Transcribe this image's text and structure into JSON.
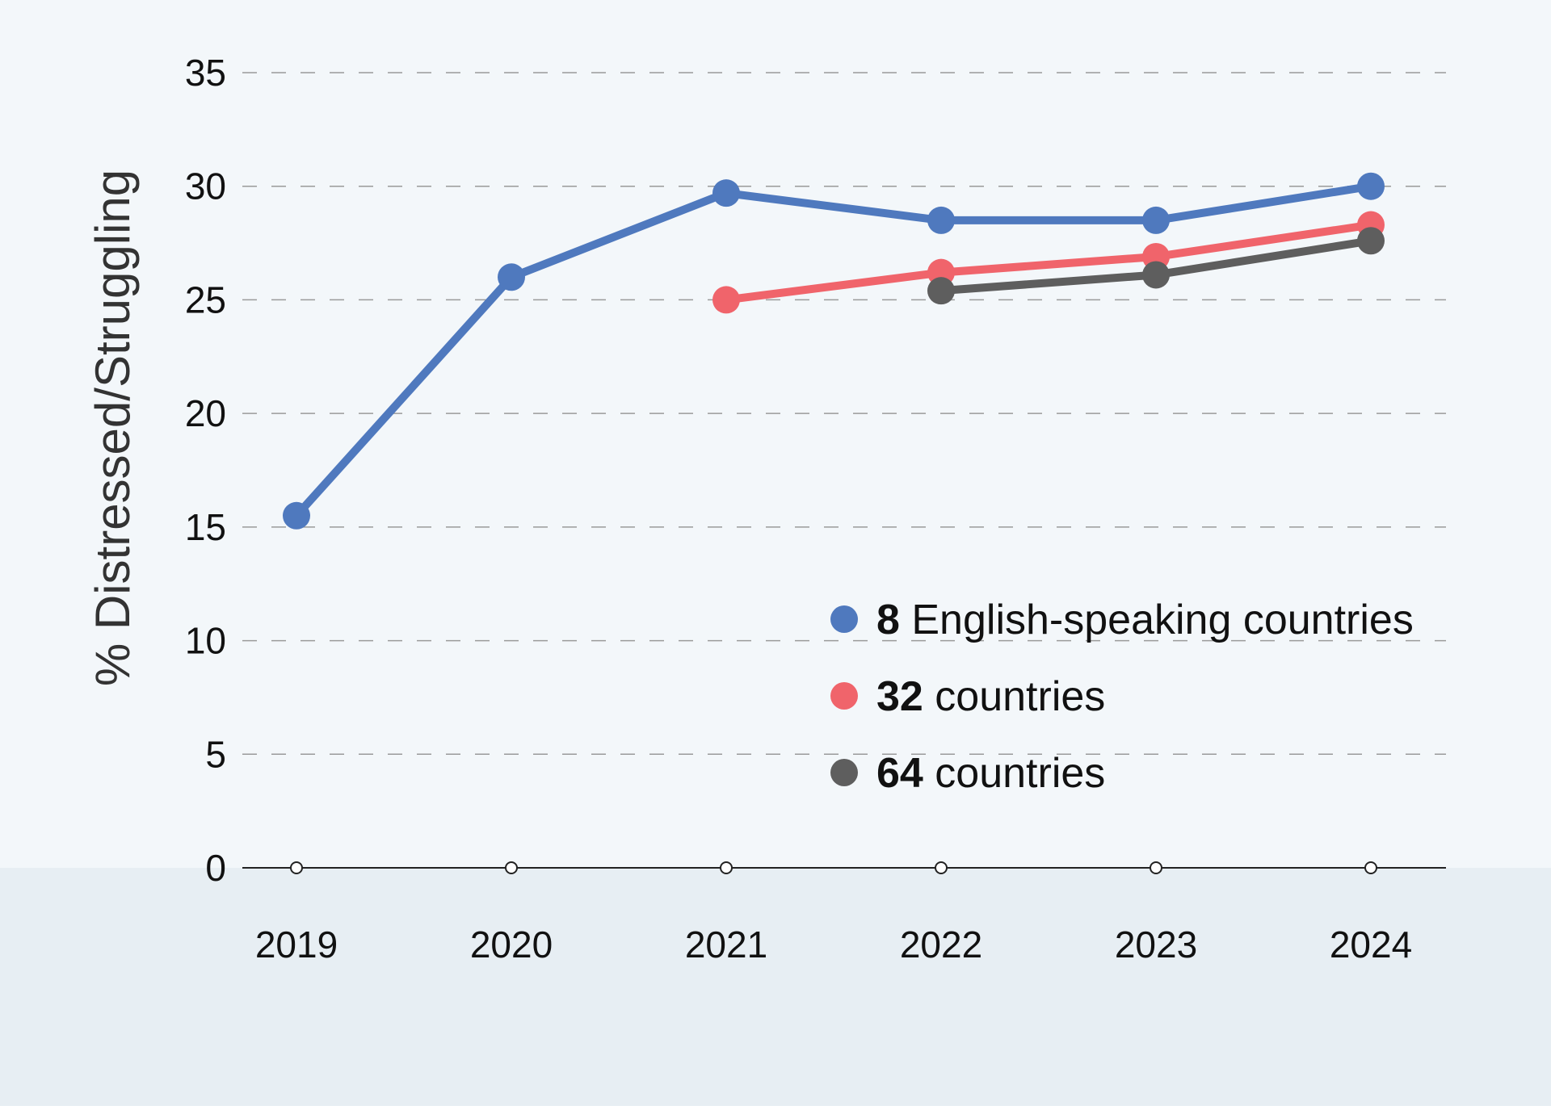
{
  "chart_data": {
    "type": "line",
    "title": "",
    "xlabel": "",
    "ylabel": "% Distressed/Struggling",
    "x": [
      "2019",
      "2020",
      "2021",
      "2022",
      "2023",
      "2024"
    ],
    "ylim": [
      0,
      35
    ],
    "yticks": [
      "0",
      "5",
      "10",
      "15",
      "20",
      "25",
      "30",
      "35"
    ],
    "grid": "horizontal dashed",
    "legend_position": "bottom-right",
    "series": [
      {
        "name": "8 English-speaking countries",
        "name_bold": "8",
        "name_rest": " English-speaking countries",
        "color": "#4f79be",
        "values": [
          15.5,
          26.0,
          29.7,
          28.5,
          28.5,
          30.0
        ]
      },
      {
        "name": "32 countries",
        "name_bold": "32",
        "name_rest": " countries",
        "color": "#f0646b",
        "values": [
          null,
          null,
          25.0,
          26.2,
          26.9,
          28.3
        ]
      },
      {
        "name": "64 countries",
        "name_bold": "64",
        "name_rest": " countries",
        "color": "#5e5e5e",
        "values": [
          null,
          null,
          null,
          25.4,
          26.1,
          27.6
        ]
      }
    ]
  },
  "colors": {
    "plot_background": "#f3f7fa",
    "lower_band": "#e7eef3",
    "grid": "#9a9a9a",
    "axis": "#222222"
  }
}
